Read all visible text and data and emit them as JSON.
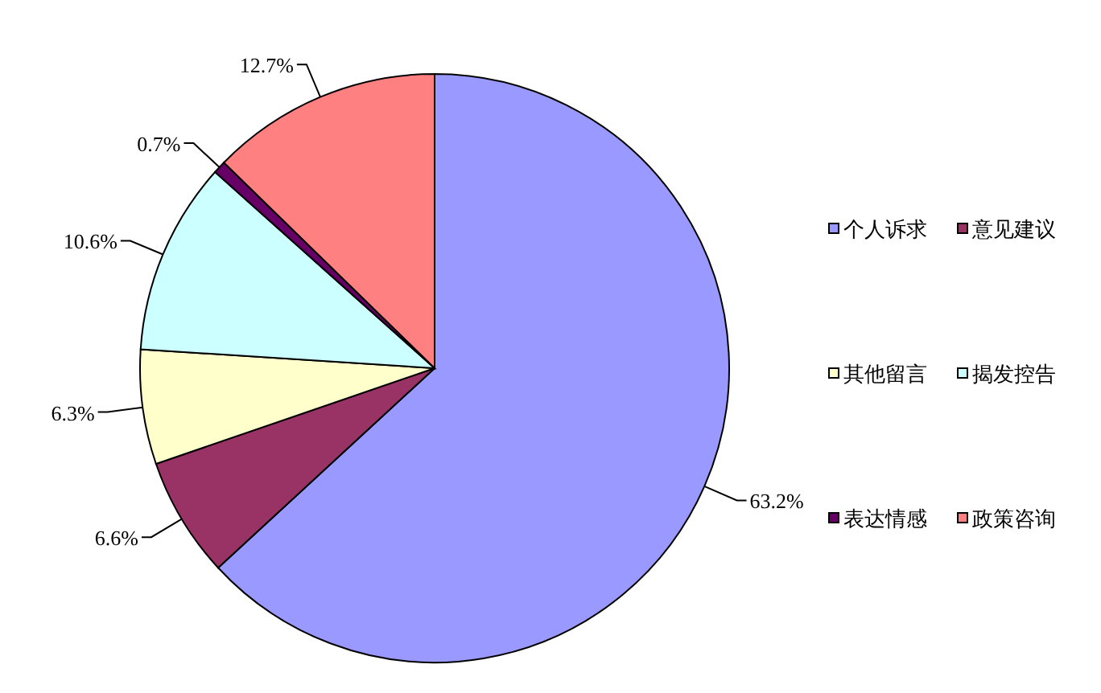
{
  "chart_data": {
    "type": "pie",
    "categories": [
      "个人诉求",
      "意见建议",
      "其他留言",
      "揭发控告",
      "表达情感",
      "政策咨询"
    ],
    "values": [
      63.2,
      6.6,
      6.3,
      10.6,
      0.7,
      12.7
    ],
    "value_labels": [
      "63.2%",
      "6.6%",
      "6.3%",
      "10.6%",
      "0.7%",
      "12.7%"
    ],
    "colors": [
      "#9999ff",
      "#993366",
      "#ffffcc",
      "#ccffff",
      "#660066",
      "#ff8080"
    ],
    "legend": "right"
  }
}
